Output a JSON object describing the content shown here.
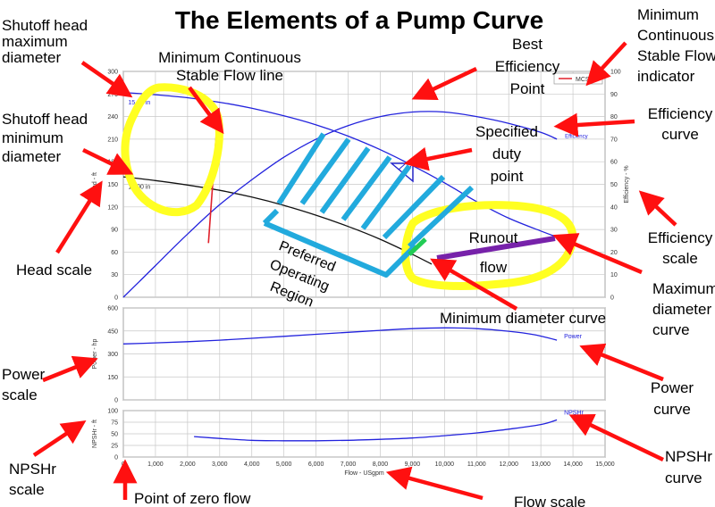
{
  "title": "The Elements of a Pump Curve",
  "colors": {
    "curve": "#2222dd",
    "min_dia": "#111111",
    "mcsf": "#e0202a",
    "arrow": "#ff1010",
    "highlight": "#ffff22",
    "region": "#22aadd",
    "runout": "#7722aa",
    "grid": "#c8c8c8"
  },
  "annotations": [
    {
      "id": "shutoff-max",
      "lines": [
        "Shutoff head",
        "maximum",
        "diameter"
      ]
    },
    {
      "id": "mcsf-line",
      "lines": [
        "Minimum Continuous",
        "Stable Flow line"
      ]
    },
    {
      "id": "bep",
      "lines": [
        "Best",
        "Efficiency",
        "Point"
      ]
    },
    {
      "id": "mcsf-indicator",
      "lines": [
        "Minimum",
        "Continuous",
        "Stable Flow",
        "indicator"
      ]
    },
    {
      "id": "shutoff-min",
      "lines": [
        "Shutoff head",
        "minimum",
        "diameter"
      ]
    },
    {
      "id": "duty",
      "lines": [
        "Specified",
        "duty",
        "point"
      ]
    },
    {
      "id": "eff-curve",
      "lines": [
        "Efficiency",
        "curve"
      ]
    },
    {
      "id": "eff-scale",
      "lines": [
        "Efficiency",
        "scale"
      ]
    },
    {
      "id": "head-scale",
      "lines": [
        "Head scale"
      ]
    },
    {
      "id": "runout",
      "lines": [
        "Runout",
        "flow"
      ]
    },
    {
      "id": "max-dia",
      "lines": [
        "Maximum",
        "diameter",
        "curve"
      ]
    },
    {
      "id": "region",
      "lines": [
        "Preferred",
        "Operating",
        "Region"
      ]
    },
    {
      "id": "min-dia",
      "lines": [
        "Minimum diameter curve"
      ]
    },
    {
      "id": "power-scale",
      "lines": [
        "Power",
        "scale"
      ]
    },
    {
      "id": "power-curve",
      "lines": [
        "Power",
        "curve"
      ]
    },
    {
      "id": "npshr-scale",
      "lines": [
        "NPSHr",
        "scale"
      ]
    },
    {
      "id": "npshr-curve",
      "lines": [
        "NPSHr",
        "curve"
      ]
    },
    {
      "id": "zero-flow",
      "lines": [
        "Point of zero flow"
      ]
    },
    {
      "id": "flow-scale",
      "lines": [
        "Flow scale"
      ]
    }
  ],
  "chart_data": [
    {
      "type": "line",
      "panel": "head",
      "xlim": [
        0,
        15000
      ],
      "ylim": [
        0,
        300
      ],
      "y2lim": [
        0,
        100
      ],
      "ylabel": "Head - ft",
      "y2label": "Efficiency - %",
      "yticks": [
        0,
        30,
        60,
        90,
        120,
        150,
        180,
        210,
        240,
        270,
        300
      ],
      "y2ticks": [
        0,
        10,
        20,
        30,
        40,
        50,
        60,
        70,
        80,
        90,
        100
      ],
      "legend": {
        "entry": "MCSF",
        "placement": "top-right"
      },
      "grid": true,
      "series": [
        {
          "label": "15.60 in",
          "axis": "head",
          "x": [
            0,
            1000,
            2000,
            3000,
            4000,
            5000,
            6000,
            7000,
            8000,
            9000,
            10000,
            11000,
            12000,
            13000,
            13500
          ],
          "y": [
            272,
            269,
            265,
            259,
            251,
            241,
            229,
            214,
            196,
            175,
            152,
            127,
            105,
            88,
            80
          ]
        },
        {
          "label": "12.00 in",
          "axis": "head",
          "x": [
            0,
            1000,
            2000,
            3000,
            4000,
            5000,
            6000,
            7000,
            8000,
            9000,
            9600
          ],
          "y": [
            160,
            155,
            149,
            142,
            133,
            122,
            109,
            94,
            77,
            57,
            44
          ]
        },
        {
          "label": "Efficiency",
          "axis": "efficiency",
          "x": [
            0,
            500,
            1000,
            2000,
            3000,
            4000,
            5000,
            6000,
            7000,
            8000,
            9000,
            10000,
            11000,
            12000,
            13000,
            13500
          ],
          "y": [
            0,
            7,
            14,
            28,
            41,
            52,
            62,
            70,
            76,
            80,
            82,
            82,
            80,
            77,
            73,
            70
          ]
        },
        {
          "label": "MCSF",
          "axis": "head",
          "x": [
            2650,
            2950
          ],
          "y": [
            72,
            250
          ]
        }
      ]
    },
    {
      "type": "line",
      "panel": "power",
      "xlim": [
        0,
        15000
      ],
      "ylim": [
        0,
        600
      ],
      "ylabel": "Power - hp",
      "yticks": [
        0,
        150,
        300,
        450,
        600
      ],
      "grid": true,
      "series": [
        {
          "label": "Power",
          "x": [
            0,
            1000,
            2000,
            3000,
            4000,
            5000,
            6000,
            7000,
            8000,
            9000,
            10000,
            11000,
            12000,
            12800,
            13500
          ],
          "y": [
            365,
            372,
            380,
            390,
            402,
            415,
            428,
            441,
            454,
            465,
            470,
            465,
            448,
            425,
            390
          ]
        }
      ]
    },
    {
      "type": "line",
      "panel": "npshr",
      "xlim": [
        0,
        15000
      ],
      "ylim": [
        0,
        100
      ],
      "ylabel": "NPSHr - ft",
      "xlabel": "Flow - USgpm",
      "yticks": [
        0,
        25,
        50,
        75,
        100
      ],
      "xticks": [
        0,
        1000,
        2000,
        3000,
        4000,
        5000,
        6000,
        7000,
        8000,
        9000,
        10000,
        11000,
        12000,
        13000,
        14000,
        15000
      ],
      "grid": true,
      "series": [
        {
          "label": "NPSHr",
          "x": [
            2200,
            3000,
            4000,
            5000,
            6000,
            7000,
            8000,
            9000,
            10000,
            11000,
            12000,
            13000,
            13500
          ],
          "y": [
            44,
            40,
            36,
            35,
            35,
            36,
            38,
            41,
            46,
            52,
            60,
            70,
            80
          ]
        }
      ]
    }
  ]
}
